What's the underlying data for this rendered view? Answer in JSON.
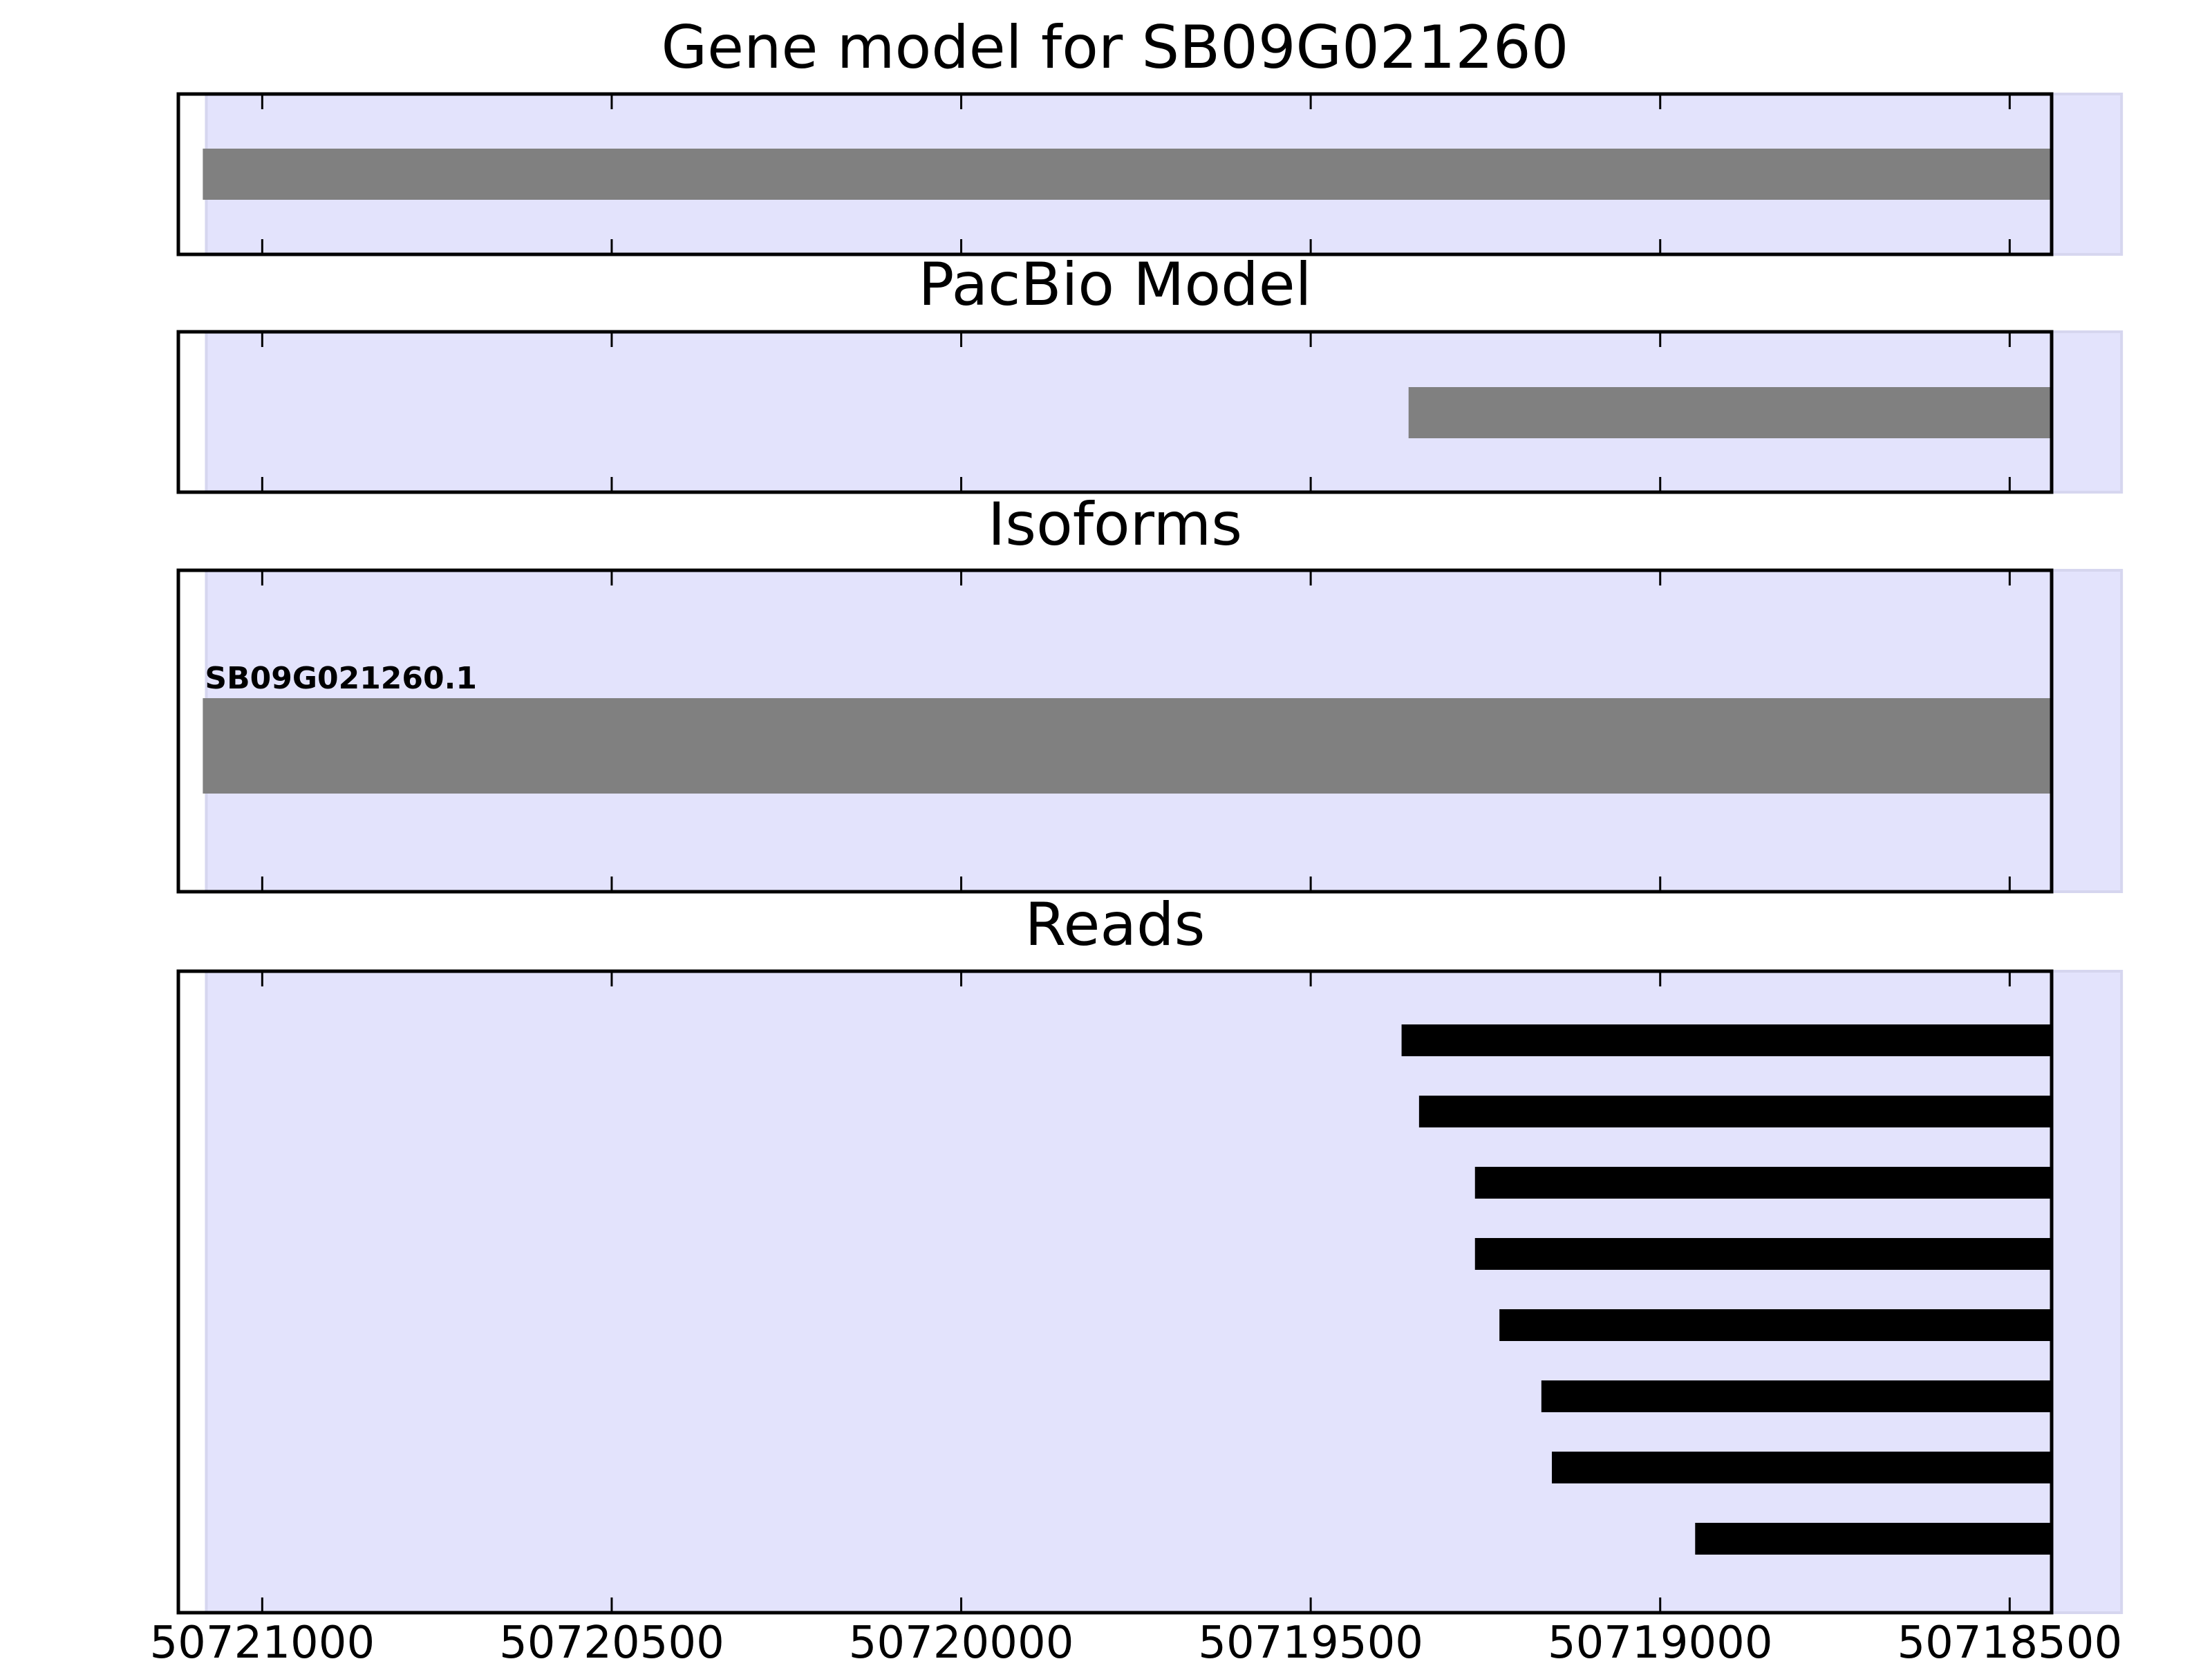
{
  "chart_data": [
    {
      "type": "gene-track",
      "title": "Gene model for SB09G021260",
      "x_reversed": true,
      "xlim": [
        50721120,
        50718440
      ],
      "shaded_region": [
        50721080,
        50718340
      ],
      "features": [
        {
          "start": 50721085,
          "end": 50718330,
          "strand": "+"
        }
      ]
    },
    {
      "type": "gene-track",
      "title": "PacBio Model",
      "x_reversed": true,
      "xlim": [
        50721120,
        50718440
      ],
      "shaded_region": [
        50721080,
        50718340
      ],
      "features": [
        {
          "start": 50719360,
          "end": 50718270,
          "strand": "+"
        }
      ]
    },
    {
      "type": "gene-track",
      "title": "Isoforms",
      "x_reversed": true,
      "xlim": [
        50721120,
        50718440
      ],
      "shaded_region": [
        50721080,
        50718340
      ],
      "features": [
        {
          "label": "SB09G021260.1",
          "start": 50721085,
          "end": 50718330,
          "strand": "+"
        }
      ]
    },
    {
      "type": "reads",
      "title": "Reads",
      "x_reversed": true,
      "xlim": [
        50721120,
        50718440
      ],
      "shaded_region": [
        50721080,
        50718340
      ],
      "xticks": [
        50721000,
        50720500,
        50720000,
        50719500,
        50719000,
        50718500
      ],
      "xtick_labels": [
        "50721000",
        "50720500",
        "50720000",
        "50719500",
        "50719000",
        "50718500"
      ],
      "reads": [
        {
          "start": 50719370,
          "end": 50718320
        },
        {
          "start": 50719345,
          "end": 50718345
        },
        {
          "start": 50719265,
          "end": 50718370
        },
        {
          "start": 50719265,
          "end": 50718370
        },
        {
          "start": 50719230,
          "end": 50718360
        },
        {
          "start": 50719170,
          "end": 50718330
        },
        {
          "start": 50719155,
          "end": 50718320
        },
        {
          "start": 50718950,
          "end": 50718345
        }
      ]
    }
  ],
  "colors": {
    "shade": "#e3e3fc",
    "shade_edge": "#d6d6ef",
    "feature": "#808080",
    "read": "#000000",
    "frame": "#000000"
  }
}
